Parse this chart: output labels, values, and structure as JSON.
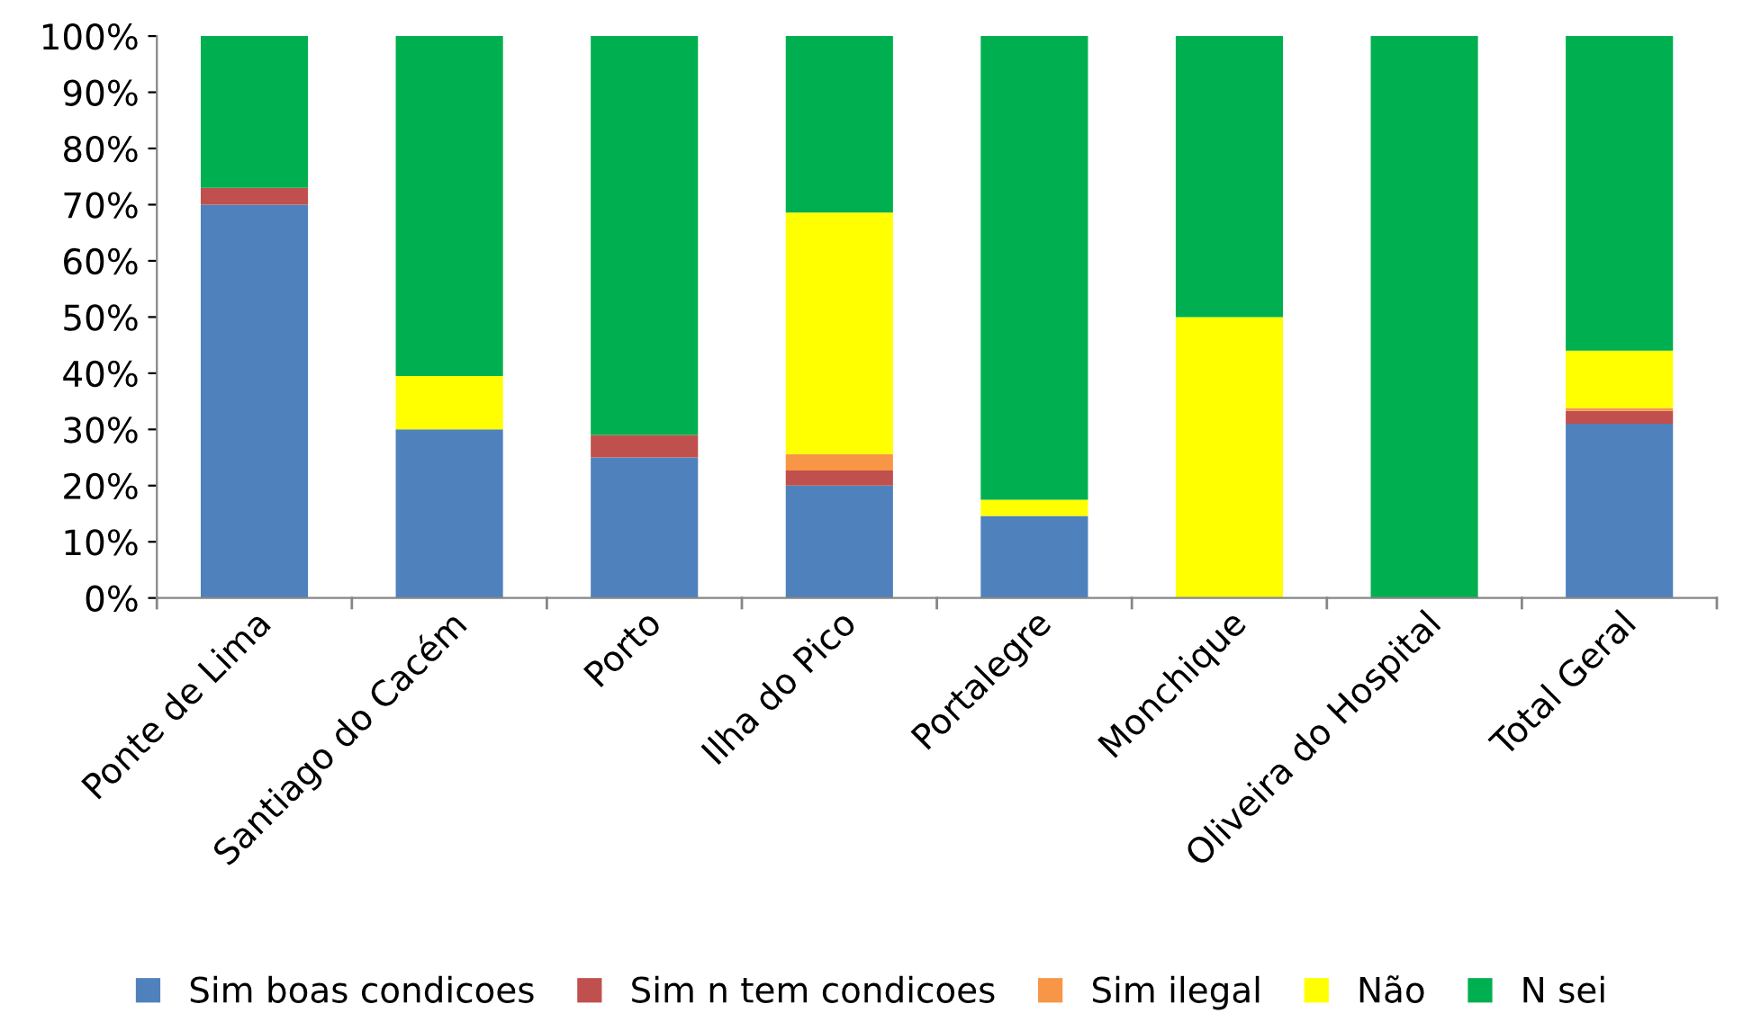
{
  "chart_data": {
    "type": "bar",
    "stacked": true,
    "categories": [
      "Ponte de Lima",
      "Santiago do Cacém",
      "Porto",
      "Ilha do Pico",
      "Portalegre",
      "Monchique",
      "Oliveira do Hospital",
      "Total Geral"
    ],
    "series": [
      {
        "name": "Sim boas condicoes",
        "color": "#4f81bd",
        "values": [
          70,
          30,
          25,
          20,
          14.6,
          0,
          0,
          31
        ]
      },
      {
        "name": "Sim n tem condicoes",
        "color": "#c0504d",
        "values": [
          3,
          0,
          4,
          2.7,
          0,
          0,
          0,
          2.3
        ]
      },
      {
        "name": "Sim ilegal",
        "color": "#f79646",
        "values": [
          0,
          0,
          0,
          2.9,
          0,
          0,
          0,
          0.5
        ]
      },
      {
        "name": "Não",
        "color": "#ffff00",
        "values": [
          0,
          9.5,
          0,
          43,
          2.9,
          50,
          0,
          10.2
        ]
      },
      {
        "name": "N sei",
        "color": "#00b050",
        "values": [
          27,
          60.5,
          71,
          31.4,
          82.5,
          50,
          100,
          56
        ]
      }
    ],
    "ylim": [
      0,
      100
    ],
    "yticks": [
      {
        "value": 0,
        "label": "0%"
      },
      {
        "value": 10,
        "label": "10%"
      },
      {
        "value": 20,
        "label": "20%"
      },
      {
        "value": 30,
        "label": "30%"
      },
      {
        "value": 40,
        "label": "40%"
      },
      {
        "value": 50,
        "label": "50%"
      },
      {
        "value": 60,
        "label": "60%"
      },
      {
        "value": 70,
        "label": "70%"
      },
      {
        "value": 80,
        "label": "80%"
      },
      {
        "value": 90,
        "label": "90%"
      },
      {
        "value": 100,
        "label": "100%"
      }
    ],
    "grid": false,
    "legend": "bottom"
  }
}
